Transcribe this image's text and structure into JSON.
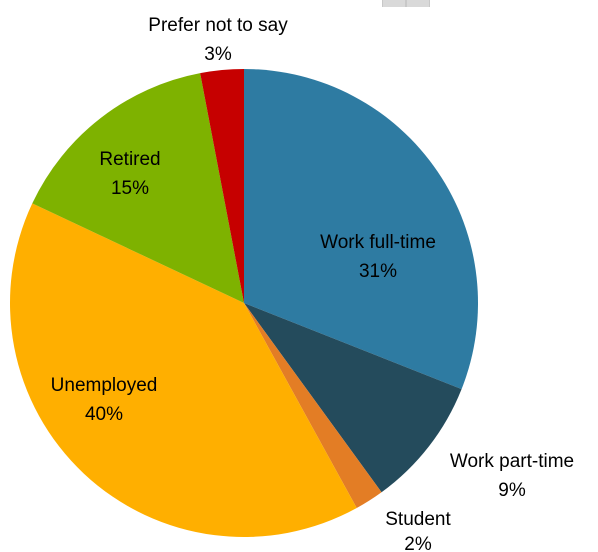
{
  "chart_data": {
    "type": "pie",
    "slices": [
      {
        "label": "Work full-time",
        "value_label": "31%",
        "value": 31,
        "color": "#2E7BA2"
      },
      {
        "label": "Work part-time",
        "value_label": "9%",
        "value": 9,
        "color": "#244B5C"
      },
      {
        "label": "Student",
        "value_label": "2%",
        "value": 2,
        "color": "#E37D25"
      },
      {
        "label": "Unemployed",
        "value_label": "40%",
        "value": 40,
        "color": "#FFAF00"
      },
      {
        "label": "Retired",
        "value_label": "15%",
        "value": 15,
        "color": "#7EB200"
      },
      {
        "label": "Prefer not to say",
        "value_label": "3%",
        "value": 3,
        "color": "#C60000"
      }
    ],
    "start_angle_deg": 0,
    "direction": "clockwise",
    "label_placement": "mixed inside/outside"
  }
}
